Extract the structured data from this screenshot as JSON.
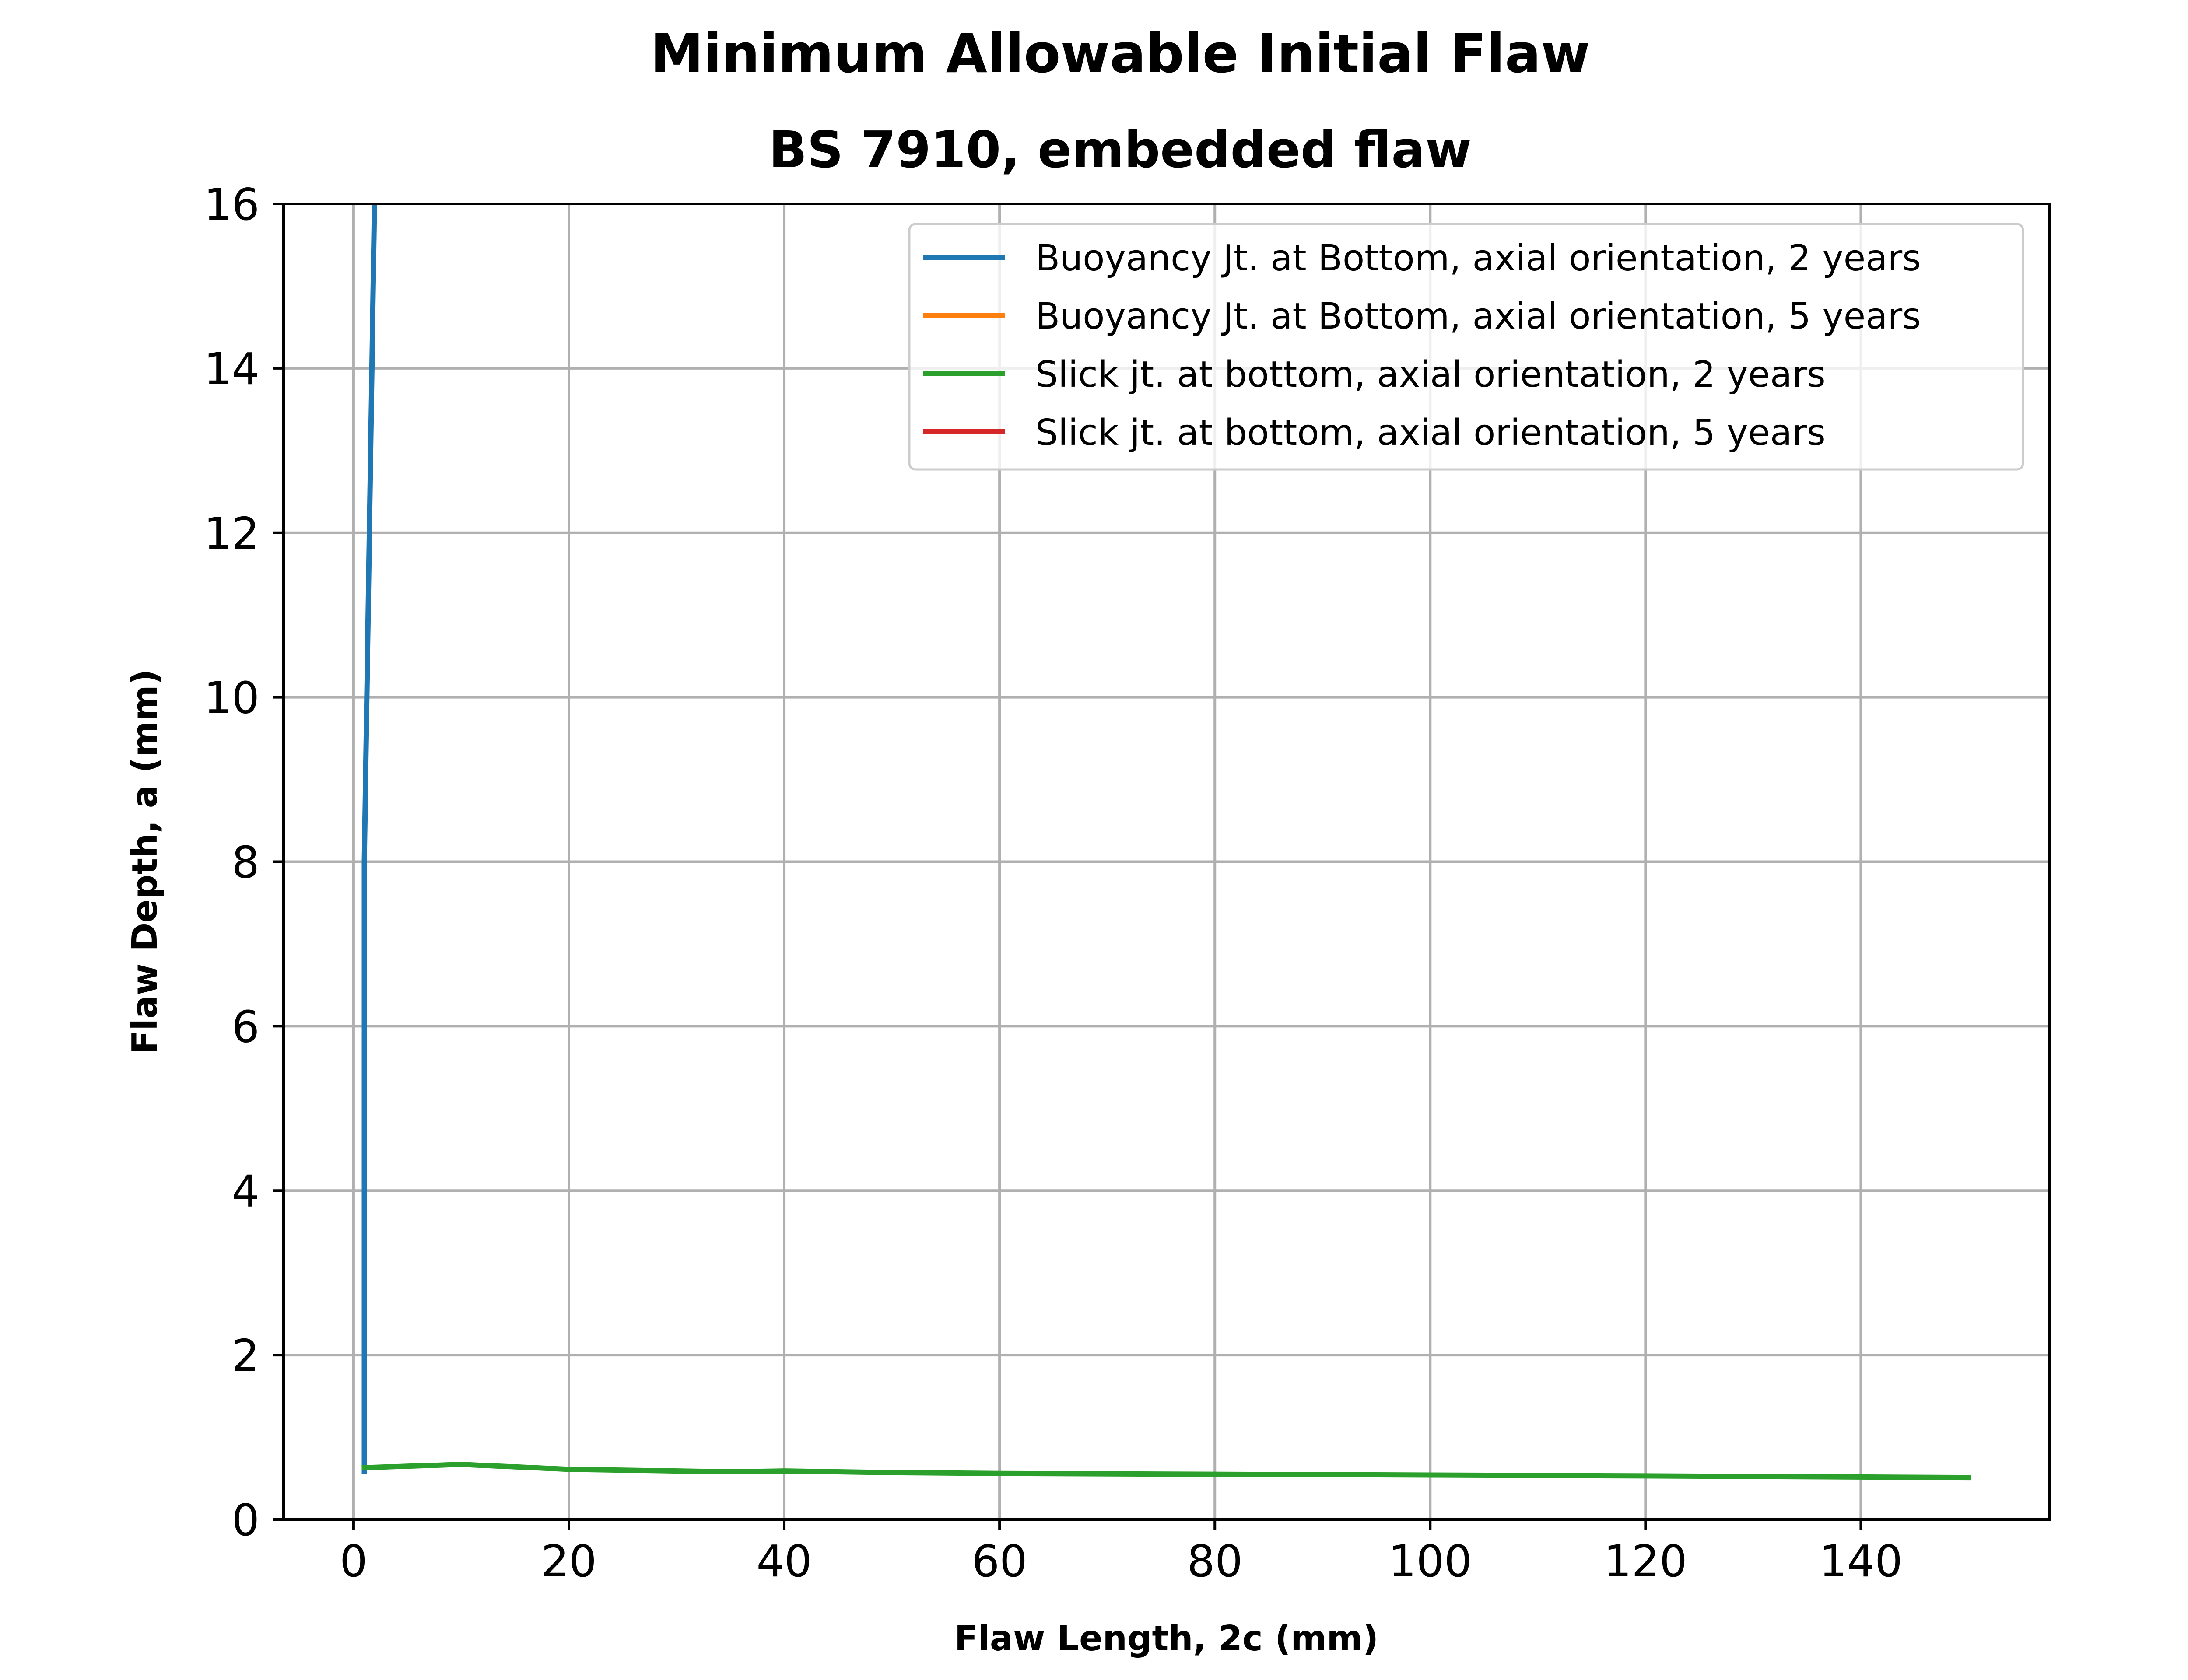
{
  "chart_data": {
    "type": "line",
    "title": "Minimum Allowable Initial Flaw",
    "subtitle": "BS 7910, embedded flaw",
    "xlabel": "Flaw Length, 2c (mm)",
    "ylabel": "Flaw Depth, a (mm)",
    "xlim": [
      -6.5,
      157.5
    ],
    "ylim": [
      0,
      16
    ],
    "xticks": [
      0,
      20,
      40,
      60,
      80,
      100,
      120,
      140
    ],
    "yticks": [
      0,
      2,
      4,
      6,
      8,
      10,
      12,
      14,
      16
    ],
    "grid": true,
    "legend_position": "top-right",
    "series": [
      {
        "name": "Buoyancy Jt. at Bottom, axial orientation, 2 years",
        "color": "#1f77b4",
        "x": [
          1,
          1,
          2
        ],
        "y": [
          0.58,
          8.0,
          16.5
        ]
      },
      {
        "name": "Buoyancy Jt. at Bottom, axial orientation, 5 years",
        "color": "#ff7f0e",
        "x": [],
        "y": []
      },
      {
        "name": "Slick jt. at bottom, axial orientation, 2 years",
        "color": "#2ca02c",
        "x": [
          1,
          10,
          20,
          35,
          40,
          50,
          60,
          80,
          100,
          120,
          150
        ],
        "y": [
          0.63,
          0.67,
          0.61,
          0.58,
          0.59,
          0.57,
          0.56,
          0.55,
          0.54,
          0.53,
          0.51
        ]
      },
      {
        "name": "Slick jt. at bottom, axial orientation, 5 years",
        "color": "#d62728",
        "x": [],
        "y": []
      }
    ]
  }
}
